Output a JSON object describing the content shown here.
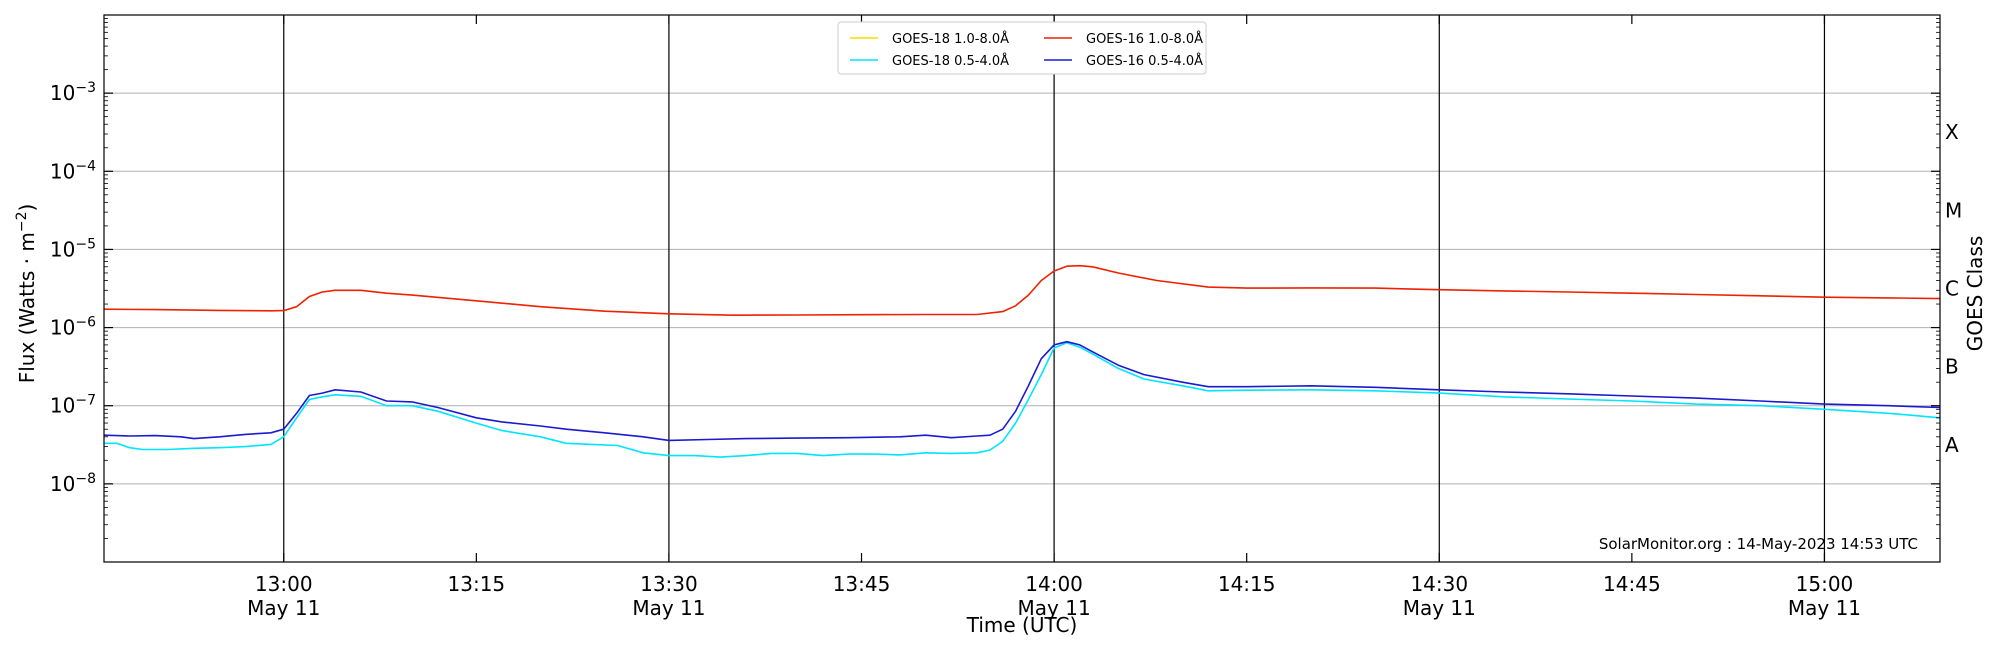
{
  "chart_data": {
    "type": "line",
    "xlabel": "Time (UTC)",
    "ylabel": "Flux (Watts · m",
    "ylabel_sup": "−2",
    "ylabel_close": ")",
    "y2label": "GOES Class",
    "yscale": "log",
    "xlim": [
      "12:46",
      "15:09"
    ],
    "ylim": [
      1e-09,
      0.01
    ],
    "grid": "horizontal at decades",
    "legend_position": "top-center",
    "x_ticks": [
      {
        "time": "13:00",
        "line1": "13:00",
        "line2": "May 11",
        "major": true
      },
      {
        "time": "13:15",
        "line1": "13:15",
        "line2": "",
        "major": false
      },
      {
        "time": "13:30",
        "line1": "13:30",
        "line2": "May 11",
        "major": true
      },
      {
        "time": "13:45",
        "line1": "13:45",
        "line2": "",
        "major": false
      },
      {
        "time": "14:00",
        "line1": "14:00",
        "line2": "May 11",
        "major": true
      },
      {
        "time": "14:15",
        "line1": "14:15",
        "line2": "",
        "major": false
      },
      {
        "time": "14:30",
        "line1": "14:30",
        "line2": "May 11",
        "major": true
      },
      {
        "time": "14:45",
        "line1": "14:45",
        "line2": "",
        "major": false
      },
      {
        "time": "15:00",
        "line1": "15:00",
        "line2": "May 11",
        "major": true
      }
    ],
    "y_ticks": [
      {
        "value": 1e-08,
        "base": "10",
        "exp": "−8"
      },
      {
        "value": 1e-07,
        "base": "10",
        "exp": "−7"
      },
      {
        "value": 1e-06,
        "base": "10",
        "exp": "−6"
      },
      {
        "value": 1e-05,
        "base": "10",
        "exp": "−5"
      },
      {
        "value": 0.0001,
        "base": "10",
        "exp": "−4"
      },
      {
        "value": 0.001,
        "base": "10",
        "exp": "−3"
      }
    ],
    "goes_classes": [
      {
        "label": "A",
        "value": 3.16e-08
      },
      {
        "label": "B",
        "value": 3.16e-07
      },
      {
        "label": "C",
        "value": 3.16e-06
      },
      {
        "label": "M",
        "value": 3.16e-05
      },
      {
        "label": "X",
        "value": 0.000316
      }
    ],
    "legend": [
      {
        "name": "GOES-18 1.0-8.0Å",
        "color": "#ffd700"
      },
      {
        "name": "GOES-18 0.5-4.0Å",
        "color": "#00e5ff"
      },
      {
        "name": "GOES-16 1.0-8.0Å",
        "color": "#ee2200"
      },
      {
        "name": "GOES-16 0.5-4.0Å",
        "color": "#1a1ad0"
      }
    ],
    "series": [
      {
        "name": "GOES-16 1.0-8.0Å",
        "color": "#ee2200",
        "points": [
          [
            "12:46",
            1.72e-06
          ],
          [
            "12:50",
            1.7e-06
          ],
          [
            "12:55",
            1.66e-06
          ],
          [
            "12:59",
            1.64e-06
          ],
          [
            "13:00",
            1.65e-06
          ],
          [
            "13:01",
            1.85e-06
          ],
          [
            "13:02",
            2.5e-06
          ],
          [
            "13:03",
            2.85e-06
          ],
          [
            "13:04",
            3e-06
          ],
          [
            "13:06",
            3e-06
          ],
          [
            "13:08",
            2.75e-06
          ],
          [
            "13:10",
            2.6e-06
          ],
          [
            "13:15",
            2.2e-06
          ],
          [
            "13:20",
            1.85e-06
          ],
          [
            "13:25",
            1.62e-06
          ],
          [
            "13:30",
            1.5e-06
          ],
          [
            "13:35",
            1.44e-06
          ],
          [
            "13:40",
            1.45e-06
          ],
          [
            "13:45",
            1.46e-06
          ],
          [
            "13:50",
            1.47e-06
          ],
          [
            "13:54",
            1.47e-06
          ],
          [
            "13:56",
            1.6e-06
          ],
          [
            "13:57",
            1.9e-06
          ],
          [
            "13:58",
            2.6e-06
          ],
          [
            "13:59",
            4e-06
          ],
          [
            "14:00",
            5.3e-06
          ],
          [
            "14:01",
            6.1e-06
          ],
          [
            "14:02",
            6.2e-06
          ],
          [
            "14:03",
            6e-06
          ],
          [
            "14:05",
            5e-06
          ],
          [
            "14:08",
            4e-06
          ],
          [
            "14:12",
            3.3e-06
          ],
          [
            "14:15",
            3.2e-06
          ],
          [
            "14:20",
            3.22e-06
          ],
          [
            "14:25",
            3.2e-06
          ],
          [
            "14:30",
            3.05e-06
          ],
          [
            "14:35",
            2.95e-06
          ],
          [
            "14:40",
            2.85e-06
          ],
          [
            "14:45",
            2.75e-06
          ],
          [
            "14:50",
            2.65e-06
          ],
          [
            "14:55",
            2.55e-06
          ],
          [
            "15:00",
            2.45e-06
          ],
          [
            "15:05",
            2.4e-06
          ],
          [
            "15:09",
            2.35e-06
          ]
        ]
      },
      {
        "name": "GOES-18 0.5-4.0Å",
        "color": "#00e5ff",
        "points": [
          [
            "12:46",
            3.3e-08
          ],
          [
            "12:47",
            3.3e-08
          ],
          [
            "12:48",
            2.9e-08
          ],
          [
            "12:49",
            2.75e-08
          ],
          [
            "12:51",
            2.75e-08
          ],
          [
            "12:53",
            2.85e-08
          ],
          [
            "12:55",
            2.9e-08
          ],
          [
            "12:57",
            3e-08
          ],
          [
            "12:59",
            3.2e-08
          ],
          [
            "13:00",
            4e-08
          ],
          [
            "13:01",
            7e-08
          ],
          [
            "13:02",
            1.2e-07
          ],
          [
            "13:03",
            1.3e-07
          ],
          [
            "13:04",
            1.38e-07
          ],
          [
            "13:06",
            1.32e-07
          ],
          [
            "13:08",
            1e-07
          ],
          [
            "13:10",
            1e-07
          ],
          [
            "13:12",
            8.5e-08
          ],
          [
            "13:15",
            6e-08
          ],
          [
            "13:17",
            4.8e-08
          ],
          [
            "13:20",
            4e-08
          ],
          [
            "13:22",
            3.3e-08
          ],
          [
            "13:24",
            3.2e-08
          ],
          [
            "13:26",
            3.1e-08
          ],
          [
            "13:28",
            2.5e-08
          ],
          [
            "13:30",
            2.3e-08
          ],
          [
            "13:32",
            2.3e-08
          ],
          [
            "13:34",
            2.2e-08
          ],
          [
            "13:36",
            2.3e-08
          ],
          [
            "13:38",
            2.45e-08
          ],
          [
            "13:40",
            2.45e-08
          ],
          [
            "13:42",
            2.3e-08
          ],
          [
            "13:44",
            2.4e-08
          ],
          [
            "13:46",
            2.4e-08
          ],
          [
            "13:48",
            2.35e-08
          ],
          [
            "13:50",
            2.5e-08
          ],
          [
            "13:52",
            2.45e-08
          ],
          [
            "13:54",
            2.5e-08
          ],
          [
            "13:55",
            2.7e-08
          ],
          [
            "13:56",
            3.5e-08
          ],
          [
            "13:57",
            6e-08
          ],
          [
            "13:58",
            1.2e-07
          ],
          [
            "13:59",
            2.5e-07
          ],
          [
            "14:00",
            5.5e-07
          ],
          [
            "14:01",
            6.4e-07
          ],
          [
            "14:02",
            5.6e-07
          ],
          [
            "14:03",
            4.6e-07
          ],
          [
            "14:05",
            3e-07
          ],
          [
            "14:07",
            2.2e-07
          ],
          [
            "14:10",
            1.8e-07
          ],
          [
            "14:12",
            1.55e-07
          ],
          [
            "14:15",
            1.58e-07
          ],
          [
            "14:20",
            1.6e-07
          ],
          [
            "14:25",
            1.55e-07
          ],
          [
            "14:30",
            1.45e-07
          ],
          [
            "14:35",
            1.3e-07
          ],
          [
            "14:40",
            1.22e-07
          ],
          [
            "14:45",
            1.15e-07
          ],
          [
            "14:50",
            1.05e-07
          ],
          [
            "14:55",
            1e-07
          ],
          [
            "15:00",
            9e-08
          ],
          [
            "15:05",
            8e-08
          ],
          [
            "15:09",
            7e-08
          ]
        ]
      },
      {
        "name": "GOES-16 0.5-4.0Å",
        "color": "#1a1ad0",
        "points": [
          [
            "12:46",
            4.2e-08
          ],
          [
            "12:48",
            4.1e-08
          ],
          [
            "12:50",
            4.15e-08
          ],
          [
            "12:52",
            4e-08
          ],
          [
            "12:53",
            3.8e-08
          ],
          [
            "12:55",
            4e-08
          ],
          [
            "12:57",
            4.3e-08
          ],
          [
            "12:59",
            4.5e-08
          ],
          [
            "13:00",
            5e-08
          ],
          [
            "13:01",
            8e-08
          ],
          [
            "13:02",
            1.35e-07
          ],
          [
            "13:03",
            1.45e-07
          ],
          [
            "13:04",
            1.6e-07
          ],
          [
            "13:06",
            1.5e-07
          ],
          [
            "13:08",
            1.15e-07
          ],
          [
            "13:10",
            1.12e-07
          ],
          [
            "13:12",
            9.5e-08
          ],
          [
            "13:15",
            7e-08
          ],
          [
            "13:17",
            6.2e-08
          ],
          [
            "13:20",
            5.5e-08
          ],
          [
            "13:22",
            5e-08
          ],
          [
            "13:25",
            4.5e-08
          ],
          [
            "13:28",
            4e-08
          ],
          [
            "13:30",
            3.6e-08
          ],
          [
            "13:33",
            3.7e-08
          ],
          [
            "13:36",
            3.8e-08
          ],
          [
            "13:40",
            3.85e-08
          ],
          [
            "13:44",
            3.9e-08
          ],
          [
            "13:48",
            4e-08
          ],
          [
            "13:50",
            4.2e-08
          ],
          [
            "13:52",
            3.9e-08
          ],
          [
            "13:54",
            4.1e-08
          ],
          [
            "13:55",
            4.2e-08
          ],
          [
            "13:56",
            5e-08
          ],
          [
            "13:57",
            8.5e-08
          ],
          [
            "13:58",
            1.8e-07
          ],
          [
            "13:59",
            4e-07
          ],
          [
            "14:00",
            6e-07
          ],
          [
            "14:01",
            6.6e-07
          ],
          [
            "14:02",
            6e-07
          ],
          [
            "14:03",
            4.9e-07
          ],
          [
            "14:05",
            3.3e-07
          ],
          [
            "14:07",
            2.5e-07
          ],
          [
            "14:10",
            2e-07
          ],
          [
            "14:12",
            1.75e-07
          ],
          [
            "14:15",
            1.75e-07
          ],
          [
            "14:20",
            1.8e-07
          ],
          [
            "14:25",
            1.72e-07
          ],
          [
            "14:30",
            1.6e-07
          ],
          [
            "14:35",
            1.5e-07
          ],
          [
            "14:40",
            1.42e-07
          ],
          [
            "14:45",
            1.33e-07
          ],
          [
            "14:50",
            1.25e-07
          ],
          [
            "14:55",
            1.15e-07
          ],
          [
            "15:00",
            1.05e-07
          ],
          [
            "15:05",
            1e-07
          ],
          [
            "15:09",
            9.5e-08
          ]
        ]
      }
    ],
    "watermark": "SolarMonitor.org : 14-May-2023 14:53 UTC"
  }
}
